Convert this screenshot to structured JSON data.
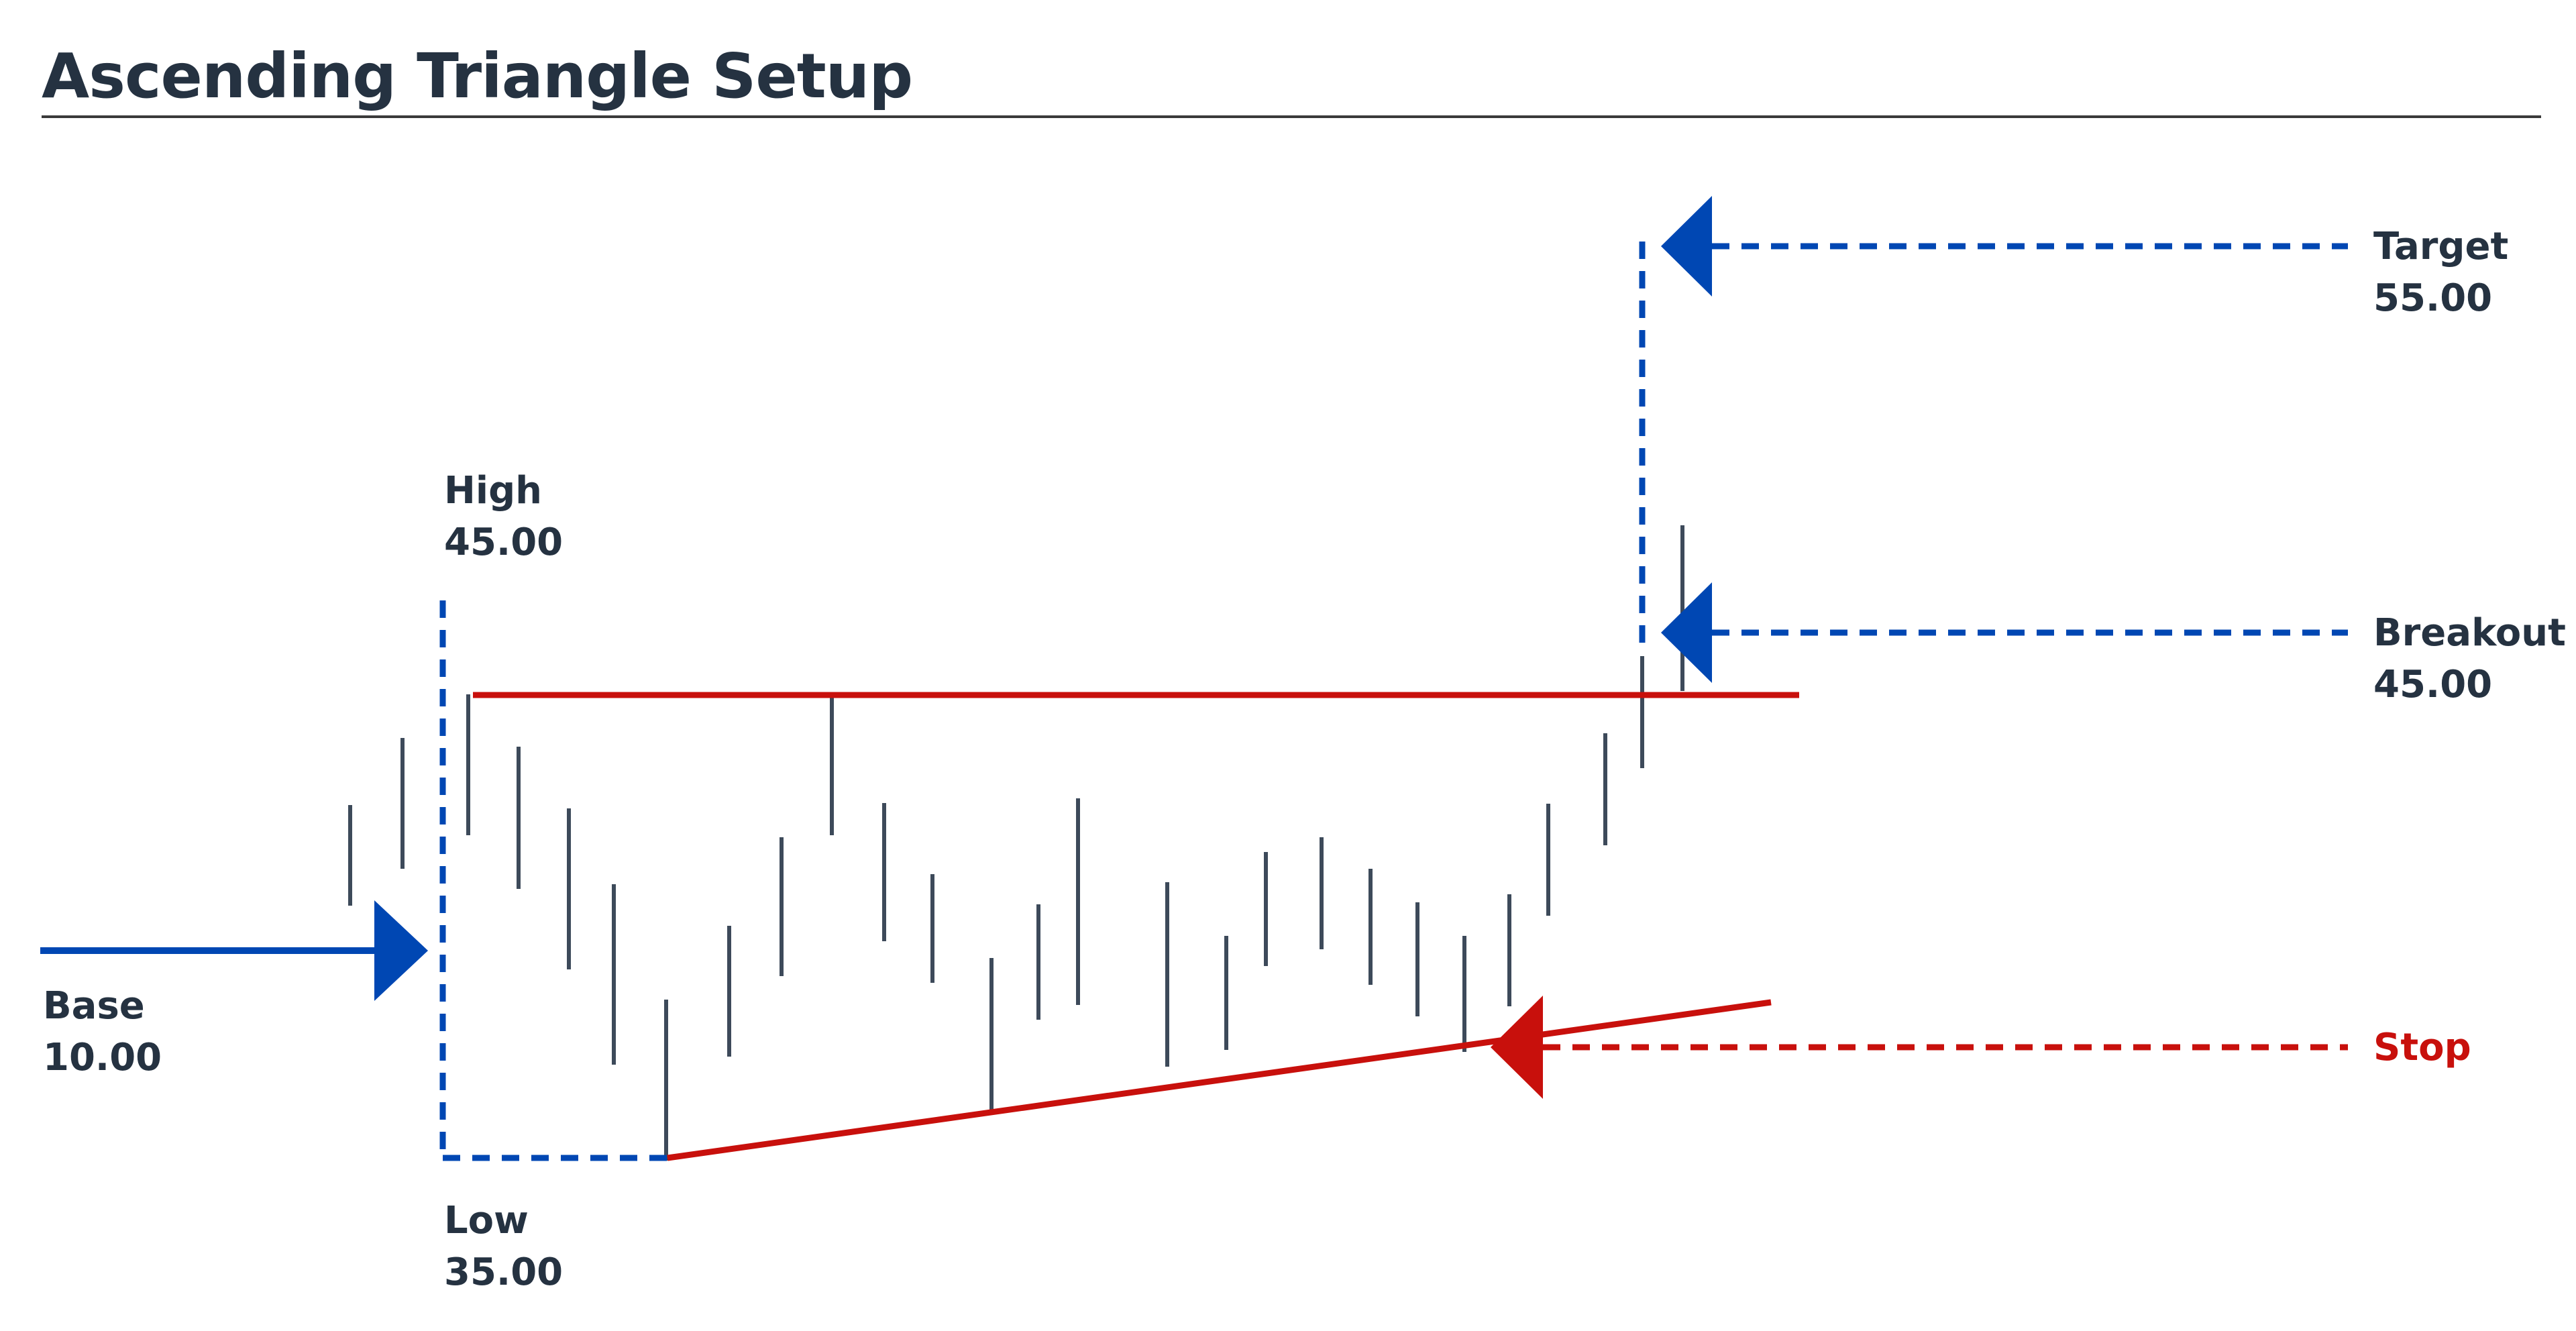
{
  "title": "Ascending Triangle Setup",
  "labels": {
    "high": {
      "name": "High",
      "value": "45.00"
    },
    "low": {
      "name": "Low",
      "value": "35.00"
    },
    "base": {
      "name": "Base",
      "value": "10.00"
    },
    "target": {
      "name": "Target",
      "value": "55.00"
    },
    "breakout": {
      "name": "Breakout",
      "value": "45.00"
    },
    "stop": {
      "name": "Stop"
    }
  },
  "colors": {
    "text": "#253241",
    "divider": "#3a3a3a",
    "blue": "#0047b3",
    "red": "#c8100c",
    "bars": "#3d4a5a"
  },
  "icons": {
    "base_arrow": "arrow-right-icon",
    "target_arrow": "arrow-left-icon",
    "breakout_arrow": "arrow-left-icon",
    "stop_arrow": "arrow-left-icon"
  }
}
